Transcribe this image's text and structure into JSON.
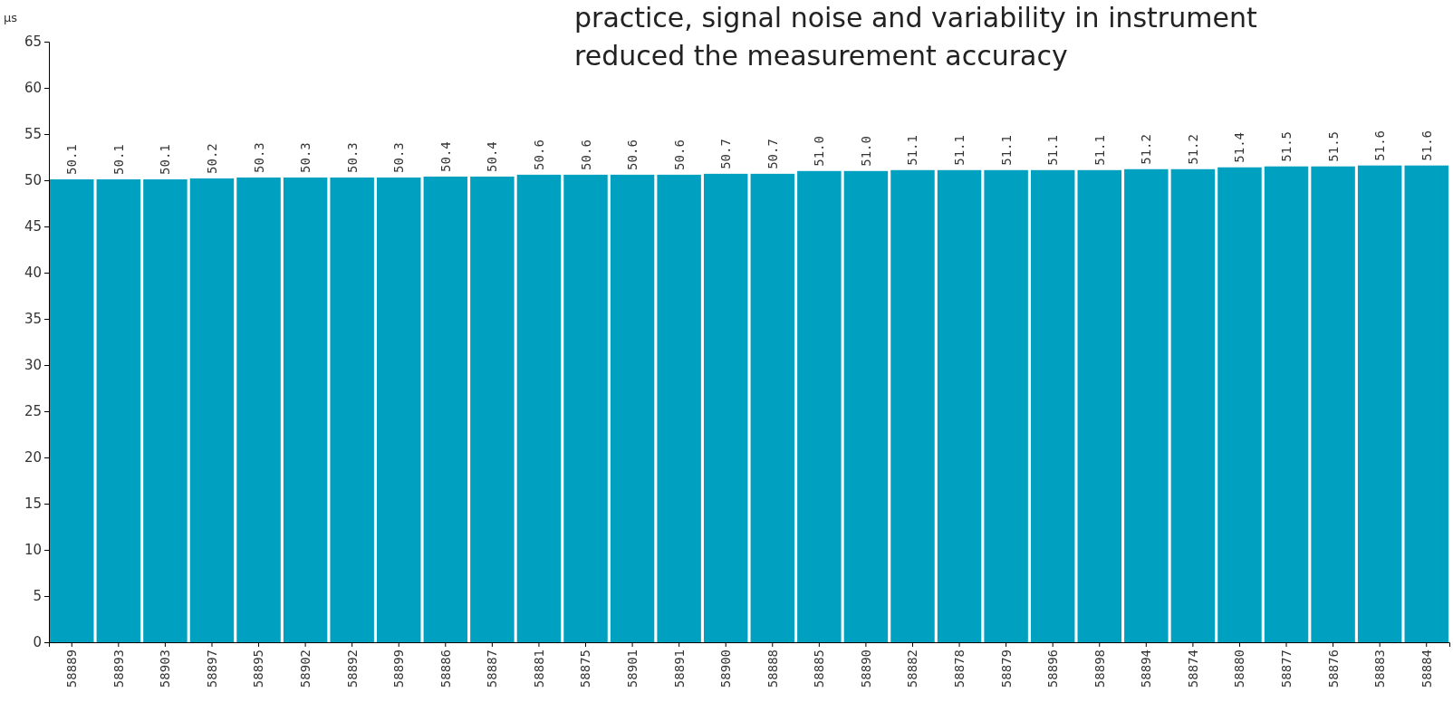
{
  "chart_data": {
    "type": "bar",
    "ylabel": "µs",
    "annotations": [
      "practice, signal noise and variability in instrument",
      "reduced the measurement accuracy"
    ],
    "categories": [
      "58889",
      "58893",
      "58903",
      "58897",
      "58895",
      "58902",
      "58892",
      "58899",
      "58886",
      "58887",
      "58881",
      "58875",
      "58901",
      "58891",
      "58900",
      "58888",
      "58885",
      "58890",
      "58882",
      "58878",
      "58879",
      "58896",
      "58898",
      "58894",
      "58874",
      "58880",
      "58877",
      "58876",
      "58883",
      "58884"
    ],
    "values": [
      50.1,
      50.1,
      50.1,
      50.2,
      50.3,
      50.3,
      50.3,
      50.3,
      50.4,
      50.4,
      50.6,
      50.6,
      50.6,
      50.6,
      50.7,
      50.7,
      51.0,
      51.0,
      51.1,
      51.1,
      51.1,
      51.1,
      51.1,
      51.2,
      51.2,
      51.4,
      51.5,
      51.5,
      51.6,
      51.6
    ],
    "value_labels": [
      "50.1",
      "50.1",
      "50.1",
      "50.2",
      "50.3",
      "50.3",
      "50.3",
      "50.3",
      "50.4",
      "50.4",
      "50.6",
      "50.6",
      "50.6",
      "50.6",
      "50.7",
      "50.7",
      "51.0",
      "51.0",
      "51.1",
      "51.1",
      "51.1",
      "51.1",
      "51.1",
      "51.2",
      "51.2",
      "51.4",
      "51.5",
      "51.5",
      "51.6",
      "51.6"
    ],
    "color": "#00a0c0",
    "ylim": [
      0,
      65
    ],
    "yticks": [
      0,
      5,
      10,
      15,
      20,
      25,
      30,
      35,
      40,
      45,
      50,
      55,
      60,
      65
    ],
    "grid": false
  }
}
